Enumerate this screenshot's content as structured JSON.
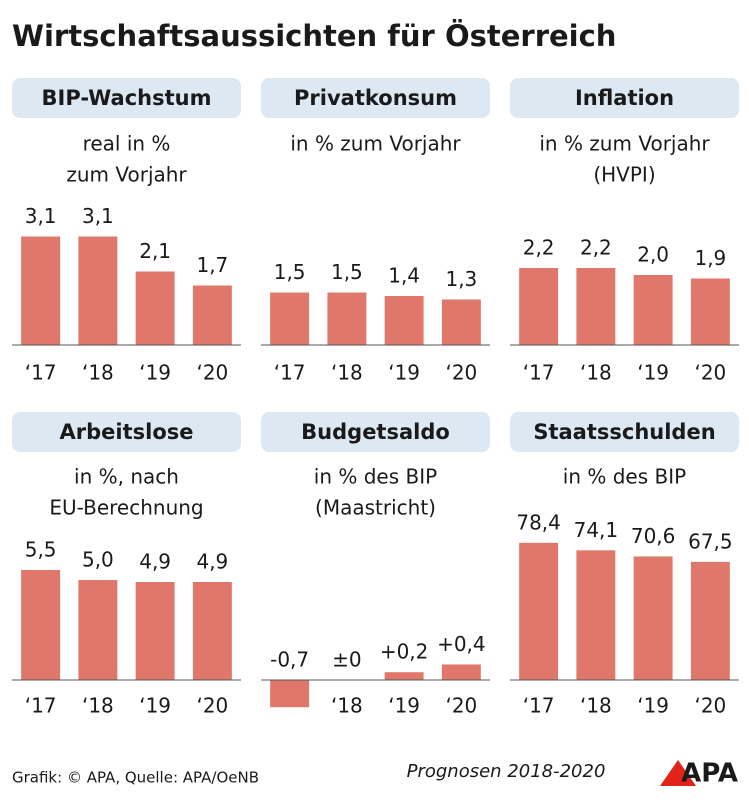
{
  "header": {
    "title": "Wirtschaftsaussichten für Österreich"
  },
  "chart_data": [
    {
      "type": "bar",
      "title": "BIP-Wachstum",
      "subtitle": [
        "real in %",
        "zum Vorjahr"
      ],
      "categories": [
        "‘17",
        "‘18",
        "‘19",
        "‘20"
      ],
      "values": [
        3.1,
        3.1,
        2.1,
        1.7
      ],
      "value_labels": [
        "3,1",
        "3,1",
        "2,1",
        "1,7"
      ],
      "color": "#e0776b",
      "ylim": [
        0,
        4
      ]
    },
    {
      "type": "bar",
      "title": "Privatkonsum",
      "subtitle": [
        "in % zum Vorjahr"
      ],
      "categories": [
        "‘17",
        "‘18",
        "‘19",
        "‘20"
      ],
      "values": [
        1.5,
        1.5,
        1.4,
        1.3
      ],
      "value_labels": [
        "1,5",
        "1,5",
        "1,4",
        "1,3"
      ],
      "color": "#e0776b",
      "ylim": [
        0,
        4
      ]
    },
    {
      "type": "bar",
      "title": "Inflation",
      "subtitle": [
        "in % zum Vorjahr",
        "(HVPI)"
      ],
      "categories": [
        "‘17",
        "‘18",
        "‘19",
        "‘20"
      ],
      "values": [
        2.2,
        2.2,
        2.0,
        1.9
      ],
      "value_labels": [
        "2,2",
        "2,2",
        "2,0",
        "1,9"
      ],
      "color": "#e0776b",
      "ylim": [
        0,
        4
      ]
    },
    {
      "type": "bar",
      "title": "Arbeitslose",
      "subtitle": [
        "in %, nach",
        "EU-Berechnung"
      ],
      "categories": [
        "‘17",
        "‘18",
        "‘19",
        "‘20"
      ],
      "values": [
        5.5,
        5.0,
        4.9,
        4.9
      ],
      "value_labels": [
        "5,5",
        "5,0",
        "4,9",
        "4,9"
      ],
      "color": "#e0776b",
      "ylim": [
        0,
        7
      ]
    },
    {
      "type": "bar",
      "title": "Budgetsaldo",
      "subtitle": [
        "in % des BIP",
        "(Maastricht)"
      ],
      "categories": [
        null,
        "‘18",
        "‘19",
        "‘20"
      ],
      "values": [
        -0.7,
        0,
        0.2,
        0.4
      ],
      "value_labels": [
        "-0,7",
        "±0",
        "+0,2",
        "+0,4"
      ],
      "color": "#e0776b",
      "ylim": [
        -1,
        3.6
      ]
    },
    {
      "type": "bar",
      "title": "Staatsschulden",
      "subtitle": [
        "in % des BIP"
      ],
      "categories": [
        "‘17",
        "‘18",
        "‘19",
        "‘20"
      ],
      "values": [
        78.4,
        74.1,
        70.6,
        67.5
      ],
      "value_labels": [
        "78,4",
        "74,1",
        "70,6",
        "67,5"
      ],
      "color": "#e0776b",
      "ylim": [
        0,
        80
      ]
    }
  ],
  "footer": {
    "source": "Grafik: © APA, Quelle: APA/OeNB",
    "note": "Prognosen 2018-2020",
    "logo": "APA"
  }
}
